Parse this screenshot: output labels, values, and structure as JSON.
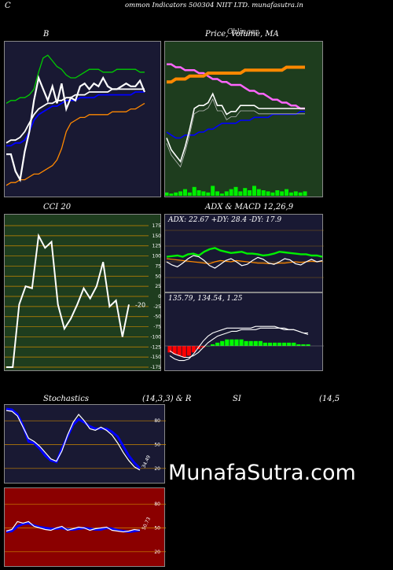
{
  "page": {
    "title": "ommon  Indicators 500304  NIIT LTD. munafasutra.in",
    "left_letter": "C",
    "watermark": "MunafaSutra.com"
  },
  "colors": {
    "background": "#000000",
    "navy_panel": "#191933",
    "green_panel": "#1e3d1e",
    "red_panel": "#8b0000",
    "grid": "#cc8800"
  },
  "chart_data": [
    {
      "id": "bollinger",
      "type": "line",
      "title": "B",
      "x": [
        0,
        1,
        2,
        3,
        4,
        5,
        6,
        7,
        8,
        9,
        10,
        11,
        12,
        13,
        14,
        15,
        16,
        17,
        18,
        19,
        20,
        21,
        22,
        23,
        24,
        25,
        26,
        27,
        28,
        29,
        30
      ],
      "series": [
        {
          "color": "#00cc00",
          "values": [
            131,
            132,
            132,
            133,
            133,
            134,
            136,
            142,
            147,
            148,
            146,
            144,
            143,
            141,
            140,
            140,
            141,
            142,
            143,
            143,
            143,
            142,
            142,
            142,
            143,
            143,
            143,
            143,
            143,
            142,
            142
          ]
        },
        {
          "color": "#ffffff",
          "values": [
            117,
            118,
            118,
            119,
            121,
            124,
            127,
            129,
            130,
            131,
            131,
            132,
            132,
            133,
            133,
            134,
            134,
            134,
            135,
            135,
            135,
            135,
            135,
            136,
            136,
            136,
            136,
            136,
            136,
            136,
            136
          ]
        },
        {
          "color": "#0000ff",
          "values": [
            116,
            116,
            117,
            117,
            118,
            121,
            125,
            127,
            128,
            129,
            130,
            130,
            131,
            132,
            132,
            132,
            133,
            133,
            133,
            133,
            134,
            134,
            134,
            134,
            134,
            134,
            134,
            134,
            135,
            135,
            135
          ]
        },
        {
          "color": "#ff8800",
          "values": [
            102,
            103,
            103,
            104,
            104,
            105,
            106,
            106,
            107,
            108,
            109,
            111,
            115,
            121,
            124,
            125,
            126,
            126,
            127,
            127,
            127,
            127,
            127,
            128,
            128,
            128,
            128,
            129,
            129,
            130,
            131
          ]
        },
        {
          "color": "#ffffff",
          "values": [
            113,
            113,
            107,
            104,
            114,
            121,
            132,
            140,
            136,
            132,
            137,
            131,
            138,
            129,
            133,
            132,
            137,
            138,
            136,
            138,
            137,
            140,
            137,
            136,
            136,
            137,
            138,
            137,
            137,
            139,
            135
          ]
        }
      ]
    },
    {
      "id": "price-volume-ma",
      "type": "line",
      "title": "Price,  Volume,  MA",
      "title_overlay": "Chlinger",
      "x": [
        0,
        1,
        2,
        3,
        4,
        5,
        6,
        7,
        8,
        9,
        10,
        11,
        12,
        13,
        14,
        15,
        16,
        17,
        18,
        19,
        20,
        21,
        22,
        23,
        24,
        25,
        26,
        27,
        28,
        29,
        30
      ],
      "series": [
        {
          "color": "#ff66ff",
          "values": [
            151,
            151,
            150,
            150,
            149,
            149,
            149,
            148,
            148,
            147,
            146,
            146,
            145,
            145,
            144,
            144,
            144,
            143,
            142,
            142,
            141,
            141,
            140,
            139,
            139,
            138,
            138,
            137,
            137,
            136,
            136
          ]
        },
        {
          "color": "#ff8800",
          "values": [
            145,
            145,
            146,
            146,
            146,
            147,
            147,
            147,
            147,
            148,
            148,
            148,
            148,
            148,
            148,
            148,
            148,
            149,
            149,
            149,
            149,
            149,
            149,
            149,
            149,
            149,
            150,
            150,
            150,
            150,
            150
          ]
        },
        {
          "color": "#0000ff",
          "values": [
            128,
            127,
            126,
            126,
            127,
            127,
            127,
            128,
            128,
            129,
            129,
            130,
            131,
            131,
            131,
            131,
            132,
            132,
            132,
            133,
            133,
            133,
            133,
            134,
            134,
            134,
            134,
            134,
            134,
            135,
            135
          ]
        },
        {
          "color": "#ffffff",
          "values": [
            126,
            122,
            120,
            118,
            123,
            129,
            136,
            137,
            137,
            138,
            141,
            137,
            137,
            134,
            135,
            135,
            137,
            137,
            137,
            137,
            136,
            136,
            136,
            136,
            136,
            136,
            136,
            136,
            136,
            136,
            136
          ]
        }
      ],
      "volume": [
        3,
        2,
        3,
        4,
        6,
        3,
        8,
        5,
        4,
        3,
        9,
        4,
        2,
        4,
        6,
        8,
        4,
        7,
        5,
        9,
        6,
        5,
        4,
        3,
        5,
        4,
        6,
        3,
        4,
        3,
        4
      ]
    },
    {
      "id": "cci",
      "type": "line",
      "title": "CCI 20",
      "ylim": [
        -175,
        175
      ],
      "yticks": [
        175,
        150,
        125,
        100,
        75,
        50,
        25,
        0,
        -25,
        -50,
        -75,
        -100,
        -125,
        -150,
        -175
      ],
      "current_label": "-20",
      "values": [
        -175,
        -175,
        -20,
        25,
        20,
        150,
        120,
        135,
        -20,
        -80,
        -55,
        -20,
        20,
        -5,
        25,
        85,
        -25,
        -10,
        -100,
        -20
      ]
    },
    {
      "id": "adx",
      "type": "line",
      "title": "ADX  & MACD 12,26,9",
      "readout": "ADX: 22.67  +DY: 28.4  -DY: 17.9",
      "yticks": [
        100,
        75,
        50,
        25
      ],
      "series": [
        {
          "color": "#00ee00",
          "values": [
            58,
            59,
            60,
            58,
            62,
            63,
            60,
            66,
            70,
            72,
            68,
            66,
            64,
            65,
            66,
            63,
            63,
            62,
            60,
            61,
            63,
            66,
            65,
            64,
            63,
            62,
            62,
            60,
            60,
            58
          ]
        },
        {
          "color": "#ff8800",
          "values": [
            55,
            54,
            53,
            52,
            51,
            50,
            49,
            48,
            47,
            50,
            52,
            51,
            50,
            52,
            51,
            50,
            49,
            48,
            48,
            47,
            47,
            48,
            48,
            49,
            50,
            49,
            50,
            51,
            50,
            51
          ]
        },
        {
          "color": "#ffffff",
          "values": [
            50,
            45,
            42,
            48,
            55,
            60,
            58,
            52,
            44,
            40,
            46,
            52,
            55,
            50,
            44,
            46,
            52,
            57,
            54,
            48,
            46,
            50,
            55,
            53,
            47,
            45,
            50,
            54,
            50,
            52
          ]
        }
      ]
    },
    {
      "id": "macd",
      "type": "bar",
      "readout": "135.79,  134.54,  1.25",
      "histogram": [
        -4,
        -5,
        -6,
        -7,
        -6,
        -4,
        -2,
        -1,
        0,
        1,
        2,
        3,
        4,
        4,
        4,
        4,
        3,
        3,
        3,
        3,
        2,
        2,
        2,
        2,
        2,
        2,
        2,
        1,
        1,
        1
      ],
      "series": [
        {
          "color": "#ffffff",
          "values": [
            -6,
            -8,
            -9,
            -9,
            -8,
            -5,
            -1,
            3,
            6,
            8,
            9,
            10,
            11,
            11,
            11,
            11,
            11,
            11,
            12,
            12,
            12,
            12,
            12,
            11,
            11,
            10,
            10,
            9,
            8,
            7
          ]
        },
        {
          "color": "#ffffff",
          "values": [
            -3,
            -5,
            -6,
            -7,
            -7,
            -6,
            -4,
            -1,
            2,
            4,
            6,
            7,
            8,
            9,
            9,
            10,
            10,
            10,
            10,
            11,
            11,
            11,
            11,
            11,
            10,
            10,
            10,
            9,
            8,
            8
          ]
        }
      ]
    },
    {
      "id": "stochastics",
      "type": "line",
      "title": "Stochastics",
      "params": "(14,3,3) & R",
      "yticks": [
        80,
        50,
        20
      ],
      "current_label": "34.49",
      "series": [
        {
          "color": "#0000ff",
          "values": [
            95,
            94,
            88,
            74,
            54,
            52,
            45,
            36,
            30,
            28,
            45,
            60,
            75,
            82,
            78,
            73,
            70,
            70,
            70,
            66,
            60,
            48,
            36,
            27,
            20
          ]
        },
        {
          "color": "#ffffff",
          "values": [
            93,
            92,
            86,
            72,
            58,
            54,
            48,
            40,
            32,
            29,
            42,
            62,
            78,
            88,
            80,
            70,
            68,
            72,
            68,
            62,
            52,
            40,
            30,
            22,
            18
          ]
        }
      ]
    },
    {
      "id": "rsi",
      "type": "line",
      "title": "SI",
      "params": "(14,5",
      "yticks": [
        80,
        50,
        20
      ],
      "current_label": "50.73",
      "series": [
        {
          "color": "#0000ff",
          "values": [
            45,
            46,
            52,
            55,
            56,
            53,
            51,
            50,
            49,
            49,
            50,
            48,
            48,
            49,
            50,
            49,
            48,
            48,
            50,
            49,
            47,
            46,
            45,
            46,
            47
          ]
        },
        {
          "color": "#ffffff",
          "values": [
            46,
            48,
            58,
            56,
            58,
            52,
            50,
            48,
            47,
            50,
            52,
            47,
            49,
            51,
            50,
            47,
            49,
            50,
            51,
            47,
            46,
            45,
            46,
            48,
            47
          ]
        }
      ]
    }
  ]
}
